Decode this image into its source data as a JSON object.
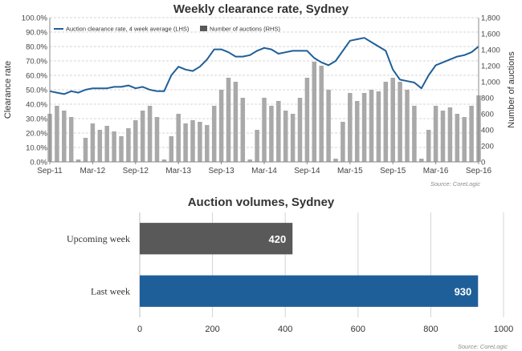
{
  "chart_data": [
    {
      "type": "line+bar",
      "title": "Weekly clearance rate, Sydney",
      "ylabel_left": "Clearance rate",
      "ylabel_right": "Number of auctions",
      "yticks_left": [
        "0.0%",
        "10.0%",
        "20.0%",
        "30.0%",
        "40.0%",
        "50.0%",
        "60.0%",
        "70.0%",
        "80.0%",
        "90.0%",
        "100.0%"
      ],
      "yticks_right": [
        "0",
        "200",
        "400",
        "600",
        "800",
        "1,000",
        "1,200",
        "1,400",
        "1,600",
        "1,800"
      ],
      "ylim_left": [
        0,
        100
      ],
      "ylim_right": [
        0,
        1800
      ],
      "xticks": [
        "Sep-11",
        "Mar-12",
        "Sep-12",
        "Mar-13",
        "Sep-13",
        "Mar-14",
        "Sep-14",
        "Mar-15",
        "Sep-15",
        "Mar-16",
        "Sep-16"
      ],
      "xlim": [
        "Sep-11",
        "Sep-16"
      ],
      "grid": "horizontal dashed",
      "legend": {
        "placement": "top-left",
        "entries": [
          "Auction clearance rate, 4 week average (LHS)",
          "Number of auctions (RHS)"
        ]
      },
      "series": [
        {
          "name": "Auction clearance rate, 4 week average (LHS)",
          "kind": "line",
          "color": "#1f5f99",
          "points": [
            [
              "Sep-11",
              49
            ],
            [
              "Oct-11",
              48
            ],
            [
              "Nov-11",
              47
            ],
            [
              "Dec-11",
              49
            ],
            [
              "Jan-12",
              48
            ],
            [
              "Feb-12",
              50
            ],
            [
              "Mar-12",
              51
            ],
            [
              "Apr-12",
              51
            ],
            [
              "May-12",
              51
            ],
            [
              "Jun-12",
              52
            ],
            [
              "Jul-12",
              52
            ],
            [
              "Aug-12",
              53
            ],
            [
              "Sep-12",
              51
            ],
            [
              "Oct-12",
              52
            ],
            [
              "Nov-12",
              50
            ],
            [
              "Dec-12",
              49
            ],
            [
              "Jan-13",
              49
            ],
            [
              "Feb-13",
              60
            ],
            [
              "Mar-13",
              66
            ],
            [
              "Apr-13",
              64
            ],
            [
              "May-13",
              63
            ],
            [
              "Jun-13",
              66
            ],
            [
              "Jul-13",
              71
            ],
            [
              "Aug-13",
              78
            ],
            [
              "Sep-13",
              78
            ],
            [
              "Oct-13",
              76
            ],
            [
              "Nov-13",
              73
            ],
            [
              "Dec-13",
              73
            ],
            [
              "Jan-14",
              74
            ],
            [
              "Feb-14",
              77
            ],
            [
              "Mar-14",
              79
            ],
            [
              "Apr-14",
              78
            ],
            [
              "May-14",
              75
            ],
            [
              "Jun-14",
              76
            ],
            [
              "Jul-14",
              77
            ],
            [
              "Aug-14",
              77
            ],
            [
              "Sep-14",
              77
            ],
            [
              "Oct-14",
              72
            ],
            [
              "Nov-14",
              69
            ],
            [
              "Dec-14",
              67
            ],
            [
              "Jan-15",
              70
            ],
            [
              "Feb-15",
              77
            ],
            [
              "Mar-15",
              84
            ],
            [
              "Apr-15",
              85
            ],
            [
              "May-15",
              86
            ],
            [
              "Jun-15",
              83
            ],
            [
              "Jul-15",
              80
            ],
            [
              "Aug-15",
              77
            ],
            [
              "Sep-15",
              64
            ],
            [
              "Oct-15",
              57
            ],
            [
              "Nov-15",
              56
            ],
            [
              "Dec-15",
              55
            ],
            [
              "Jan-16",
              51
            ],
            [
              "Feb-16",
              60
            ],
            [
              "Mar-16",
              67
            ],
            [
              "Apr-16",
              69
            ],
            [
              "May-16",
              71
            ],
            [
              "Jun-16",
              73
            ],
            [
              "Jul-16",
              74
            ],
            [
              "Aug-16",
              76
            ],
            [
              "Sep-16",
              80
            ]
          ]
        },
        {
          "name": "Number of auctions (RHS)",
          "kind": "bar",
          "color": "#a9a9a9",
          "points": [
            [
              "Sep-11",
              600
            ],
            [
              "Oct-11",
              700
            ],
            [
              "Nov-11",
              640
            ],
            [
              "Dec-11",
              560
            ],
            [
              "Jan-12",
              30
            ],
            [
              "Feb-12",
              300
            ],
            [
              "Mar-12",
              480
            ],
            [
              "Apr-12",
              400
            ],
            [
              "May-12",
              450
            ],
            [
              "Jun-12",
              380
            ],
            [
              "Jul-12",
              320
            ],
            [
              "Aug-12",
              420
            ],
            [
              "Sep-12",
              520
            ],
            [
              "Oct-12",
              640
            ],
            [
              "Nov-12",
              700
            ],
            [
              "Dec-12",
              560
            ],
            [
              "Jan-13",
              30
            ],
            [
              "Feb-13",
              320
            ],
            [
              "Mar-13",
              600
            ],
            [
              "Apr-13",
              480
            ],
            [
              "May-13",
              520
            ],
            [
              "Jun-13",
              500
            ],
            [
              "Jul-13",
              460
            ],
            [
              "Aug-13",
              700
            ],
            [
              "Sep-13",
              900
            ],
            [
              "Oct-13",
              1050
            ],
            [
              "Nov-13",
              1000
            ],
            [
              "Dec-13",
              800
            ],
            [
              "Jan-14",
              30
            ],
            [
              "Feb-14",
              400
            ],
            [
              "Mar-14",
              800
            ],
            [
              "Apr-14",
              700
            ],
            [
              "May-14",
              760
            ],
            [
              "Jun-14",
              640
            ],
            [
              "Jul-14",
              600
            ],
            [
              "Aug-14",
              800
            ],
            [
              "Sep-14",
              1050
            ],
            [
              "Oct-14",
              1250
            ],
            [
              "Nov-14",
              1200
            ],
            [
              "Dec-14",
              900
            ],
            [
              "Jan-15",
              40
            ],
            [
              "Feb-15",
              500
            ],
            [
              "Mar-15",
              860
            ],
            [
              "Apr-15",
              760
            ],
            [
              "May-15",
              860
            ],
            [
              "Jun-15",
              900
            ],
            [
              "Jul-15",
              880
            ],
            [
              "Aug-15",
              1000
            ],
            [
              "Sep-15",
              1050
            ],
            [
              "Oct-15",
              1000
            ],
            [
              "Nov-15",
              900
            ],
            [
              "Dec-15",
              700
            ],
            [
              "Jan-16",
              40
            ],
            [
              "Feb-16",
              400
            ],
            [
              "Mar-16",
              700
            ],
            [
              "Apr-16",
              640
            ],
            [
              "May-16",
              680
            ],
            [
              "Jun-16",
              600
            ],
            [
              "Jul-16",
              560
            ],
            [
              "Aug-16",
              700
            ],
            [
              "Sep-16",
              830
            ]
          ]
        }
      ],
      "source": "Source: CoreLogic"
    },
    {
      "type": "bar",
      "orientation": "horizontal",
      "title": "Auction volumes, Sydney",
      "categories": [
        "Upcoming week",
        "Last week"
      ],
      "values": [
        420,
        930
      ],
      "data_labels": [
        "420",
        "930"
      ],
      "colors": [
        "#595959",
        "#1f5f99"
      ],
      "xticks": [
        "0",
        "200",
        "400",
        "600",
        "800",
        "1000"
      ],
      "xlim": [
        0,
        1000
      ],
      "grid": "vertical",
      "source": "Source: CoreLogic"
    }
  ]
}
